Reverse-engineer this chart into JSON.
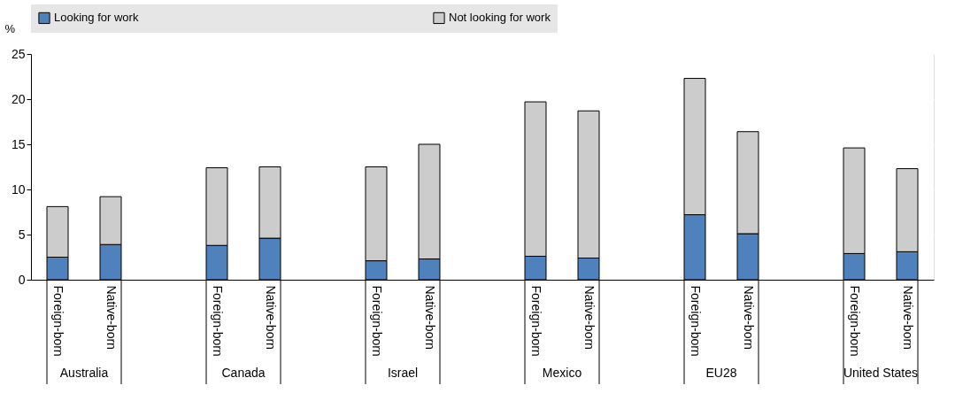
{
  "chart_data": {
    "type": "bar",
    "stacked": true,
    "ylabel": "%",
    "categories": [
      "Foreign-born",
      "Native-born",
      null,
      "Foreign-born",
      "Native-born",
      null,
      "Foreign-born",
      "Native-born",
      null,
      "Foreign-born",
      "Native-born",
      null,
      "Foreign-born",
      "Native-born",
      null,
      "Foreign-born",
      "Native-born"
    ],
    "series": [
      {
        "name": "Looking for work",
        "color": "#4f81bd",
        "values": [
          2.5,
          3.9,
          null,
          3.8,
          4.6,
          null,
          2.1,
          2.3,
          null,
          2.6,
          2.4,
          null,
          7.2,
          5.1,
          null,
          2.9,
          3.1
        ]
      },
      {
        "name": "Not looking for work",
        "color": "#cccccc",
        "values": [
          5.6,
          5.3,
          null,
          8.6,
          7.9,
          null,
          10.4,
          12.7,
          null,
          17.1,
          16.3,
          null,
          15.1,
          11.3,
          null,
          11.7,
          9.2
        ]
      }
    ],
    "annotations": [
      "Australia",
      "Canada",
      "Israel",
      "Mexico",
      "EU28",
      "United States"
    ],
    "ylim": [
      0,
      25
    ],
    "yticks": [
      0,
      5,
      10,
      15,
      20,
      25
    ],
    "grid": true,
    "legend": "top"
  }
}
